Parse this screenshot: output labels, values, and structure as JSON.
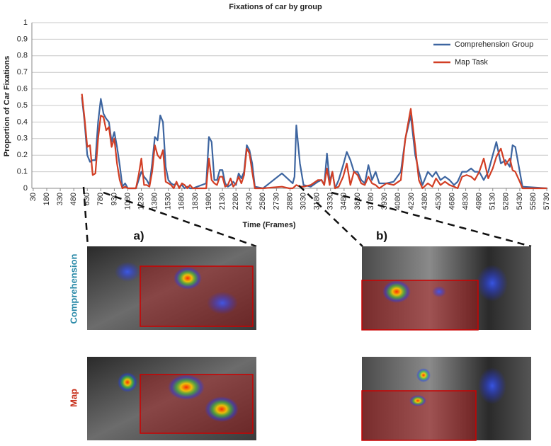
{
  "chart_data": {
    "type": "line",
    "title": "Fixations of car by group",
    "x_label": "Time (Frames)",
    "y_label": "Proportion of Car Fixations",
    "xlim": [
      15,
      5745
    ],
    "xticks": [
      30,
      180,
      330,
      480,
      630,
      780,
      930,
      1080,
      1230,
      1380,
      1530,
      1680,
      1830,
      1980,
      2130,
      2280,
      2430,
      2580,
      2730,
      2880,
      3030,
      3180,
      3330,
      3480,
      3630,
      3780,
      3930,
      4080,
      4230,
      4380,
      4530,
      4680,
      4830,
      4980,
      5130,
      5280,
      5430,
      5580,
      5730
    ],
    "ylim": [
      0,
      1
    ],
    "yticks": [
      0,
      0.1,
      0.2,
      0.3,
      0.4,
      0.5,
      0.6,
      0.7,
      0.8,
      0.9,
      1
    ],
    "grid": true,
    "legend": "top-right",
    "x": [
      570,
      600,
      630,
      660,
      690,
      720,
      750,
      780,
      810,
      840,
      870,
      900,
      930,
      960,
      990,
      1020,
      1050,
      1080,
      1170,
      1200,
      1230,
      1260,
      1290,
      1320,
      1350,
      1380,
      1410,
      1440,
      1470,
      1500,
      1530,
      1560,
      1590,
      1620,
      1650,
      1680,
      1710,
      1740,
      1770,
      1800,
      1950,
      1980,
      2010,
      2040,
      2070,
      2100,
      2130,
      2160,
      2190,
      2220,
      2250,
      2280,
      2310,
      2340,
      2370,
      2400,
      2430,
      2460,
      2490,
      2580,
      2790,
      2870,
      2910,
      2930,
      2950,
      2990,
      3030,
      3110,
      3190,
      3230,
      3260,
      3290,
      3320,
      3350,
      3380,
      3420,
      3470,
      3510,
      3550,
      3590,
      3630,
      3670,
      3710,
      3750,
      3790,
      3830,
      3870,
      3950,
      4030,
      4110,
      4160,
      4220,
      4270,
      4310,
      4350,
      4410,
      4460,
      4500,
      4550,
      4600,
      4650,
      4700,
      4740,
      4790,
      4840,
      4890,
      4930,
      4980,
      5030,
      5080,
      5130,
      5170,
      5220,
      5270,
      5320,
      5350,
      5380,
      5430,
      5460,
      5730
    ],
    "series": [
      {
        "name": "Comprehension Group",
        "color": "#3d65a0",
        "values": [
          0.55,
          0.4,
          0.2,
          0.16,
          0.17,
          0.17,
          0.4,
          0.54,
          0.45,
          0.42,
          0.4,
          0.28,
          0.34,
          0.25,
          0.14,
          0.01,
          0.03,
          0,
          0,
          0.05,
          0.1,
          0.07,
          0.05,
          0.02,
          0.15,
          0.31,
          0.29,
          0.44,
          0.4,
          0.13,
          0.05,
          0.03,
          0.02,
          0.03,
          0.01,
          0.02,
          0,
          0.01,
          0,
          0,
          0.03,
          0.31,
          0.28,
          0.05,
          0.05,
          0.11,
          0.11,
          0.03,
          0.01,
          0.02,
          0.04,
          0.02,
          0.09,
          0.06,
          0.1,
          0.26,
          0.23,
          0.15,
          0.01,
          0,
          0.09,
          0.05,
          0.03,
          0.07,
          0.38,
          0.15,
          0.02,
          0.01,
          0.04,
          0.05,
          0.02,
          0.21,
          0.04,
          0.1,
          0,
          0.05,
          0.14,
          0.22,
          0.17,
          0.1,
          0.1,
          0.05,
          0.03,
          0.14,
          0.05,
          0.1,
          0.03,
          0.03,
          0.04,
          0.1,
          0.3,
          0.44,
          0.2,
          0.1,
          0.02,
          0.1,
          0.07,
          0.1,
          0.05,
          0.07,
          0.05,
          0.02,
          0.04,
          0.1,
          0.1,
          0.12,
          0.1,
          0.1,
          0.05,
          0.1,
          0.2,
          0.28,
          0.15,
          0.17,
          0.13,
          0.26,
          0.25,
          0.1,
          0.01,
          0
        ]
      },
      {
        "name": "Map Task",
        "color": "#d23e24",
        "values": [
          0.57,
          0.42,
          0.25,
          0.26,
          0.08,
          0.09,
          0.3,
          0.44,
          0.43,
          0.35,
          0.37,
          0.25,
          0.3,
          0.15,
          0.05,
          0,
          0.01,
          0,
          0,
          0.08,
          0.18,
          0.02,
          0.02,
          0.01,
          0.1,
          0.26,
          0.2,
          0.18,
          0.23,
          0.04,
          0.03,
          0.02,
          0,
          0.04,
          0,
          0.03,
          0.02,
          0,
          0.02,
          0,
          0,
          0.18,
          0.05,
          0.03,
          0.02,
          0.07,
          0.07,
          0.01,
          0.02,
          0.06,
          0.01,
          0.03,
          0.07,
          0.03,
          0.08,
          0.24,
          0.21,
          0.1,
          0,
          0,
          0.01,
          0,
          0,
          0.01,
          0.02,
          0.01,
          0.01,
          0.02,
          0.05,
          0.05,
          0.02,
          0.12,
          0.02,
          0.1,
          0,
          0.01,
          0.07,
          0.15,
          0.02,
          0.1,
          0.08,
          0.03,
          0.02,
          0.07,
          0.03,
          0.02,
          0,
          0.03,
          0.02,
          0.05,
          0.3,
          0.48,
          0.25,
          0.05,
          0,
          0.03,
          0.01,
          0.06,
          0.02,
          0.04,
          0.02,
          0.01,
          0,
          0.07,
          0.08,
          0.07,
          0.05,
          0.1,
          0.18,
          0.06,
          0.12,
          0.19,
          0.24,
          0.14,
          0.18,
          0.11,
          0.1,
          0.04,
          0,
          0
        ]
      }
    ]
  },
  "panel_labels": [
    "a)",
    "b)"
  ],
  "row_labels": [
    "Comprehension",
    "Map"
  ]
}
